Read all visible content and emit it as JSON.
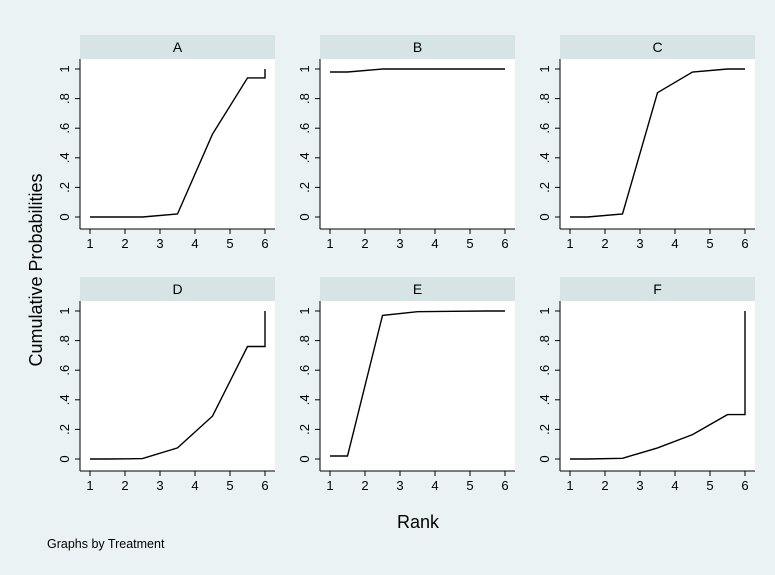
{
  "figure": {
    "ylabel": "Cumulative Probabilities",
    "xlabel": "Rank",
    "note": "Graphs by Treatment",
    "background": "#eaf2f3",
    "panel_background": "#ffffff",
    "header_background": "#d6e4e6",
    "line_color": "#000000"
  },
  "chart_data": [
    {
      "type": "line",
      "title": "A",
      "x": [
        1,
        1.5,
        2.5,
        3.5,
        4.5,
        5.5,
        6,
        6
      ],
      "y": [
        0,
        0,
        0,
        0.02,
        0.56,
        0.94,
        0.94,
        1.0
      ],
      "xticks": [
        "1",
        "2",
        "3",
        "4",
        "5",
        "6"
      ],
      "yticks": [
        "0",
        ".2",
        ".4",
        ".6",
        ".8",
        "1"
      ],
      "xlim": [
        1,
        6
      ],
      "ylim": [
        0,
        1
      ]
    },
    {
      "type": "line",
      "title": "B",
      "x": [
        1,
        1.5,
        2.5,
        3.5,
        4.5,
        5.5,
        6
      ],
      "y": [
        0.98,
        0.98,
        1.0,
        1.0,
        1.0,
        1.0,
        1.0
      ],
      "xticks": [
        "1",
        "2",
        "3",
        "4",
        "5",
        "6"
      ],
      "yticks": [
        "0",
        ".2",
        ".4",
        ".6",
        ".8",
        "1"
      ],
      "xlim": [
        1,
        6
      ],
      "ylim": [
        0,
        1
      ]
    },
    {
      "type": "line",
      "title": "C",
      "x": [
        1,
        1.5,
        2.5,
        3.5,
        4.5,
        5.5,
        6
      ],
      "y": [
        0,
        0,
        0.02,
        0.84,
        0.98,
        1.0,
        1.0
      ],
      "xticks": [
        "1",
        "2",
        "3",
        "4",
        "5",
        "6"
      ],
      "yticks": [
        "0",
        ".2",
        ".4",
        ".6",
        ".8",
        "1"
      ],
      "xlim": [
        1,
        6
      ],
      "ylim": [
        0,
        1
      ]
    },
    {
      "type": "line",
      "title": "D",
      "x": [
        1,
        1.5,
        2.5,
        3.5,
        4.5,
        5.5,
        6,
        6
      ],
      "y": [
        0,
        0,
        0.003,
        0.075,
        0.29,
        0.76,
        0.76,
        1.0
      ],
      "xticks": [
        "1",
        "2",
        "3",
        "4",
        "5",
        "6"
      ],
      "yticks": [
        "0",
        ".2",
        ".4",
        ".6",
        ".8",
        "1"
      ],
      "xlim": [
        1,
        6
      ],
      "ylim": [
        0,
        1
      ]
    },
    {
      "type": "line",
      "title": "E",
      "x": [
        1,
        1.5,
        2.5,
        3.5,
        4.5,
        5.5,
        6
      ],
      "y": [
        0.02,
        0.02,
        0.97,
        0.995,
        0.998,
        1.0,
        1.0
      ],
      "xticks": [
        "1",
        "2",
        "3",
        "4",
        "5",
        "6"
      ],
      "yticks": [
        "0",
        ".2",
        ".4",
        ".6",
        ".8",
        "1"
      ],
      "xlim": [
        1,
        6
      ],
      "ylim": [
        0,
        1
      ]
    },
    {
      "type": "line",
      "title": "F",
      "x": [
        1,
        1.5,
        2.5,
        3.5,
        4.5,
        5.5,
        6,
        6
      ],
      "y": [
        0,
        0,
        0.005,
        0.075,
        0.165,
        0.3,
        0.3,
        1.0
      ],
      "xticks": [
        "1",
        "2",
        "3",
        "4",
        "5",
        "6"
      ],
      "yticks": [
        "0",
        ".2",
        ".4",
        ".6",
        ".8",
        "1"
      ],
      "xlim": [
        1,
        6
      ],
      "ylim": [
        0,
        1
      ]
    }
  ]
}
